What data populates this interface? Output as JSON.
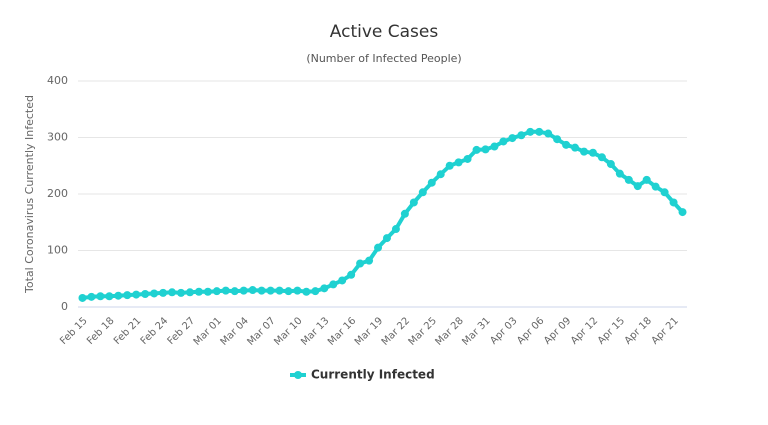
{
  "chart_data": {
    "type": "line",
    "title": "Active Cases",
    "subtitle": "(Number of Infected People)",
    "y_label": "Total Coronavirus Currently Infected",
    "categories": [
      "Feb 15",
      null,
      null,
      "Feb 18",
      null,
      null,
      "Feb 21",
      null,
      null,
      "Feb 24",
      null,
      null,
      "Feb 27",
      null,
      null,
      "Mar 01",
      null,
      null,
      "Mar 04",
      null,
      null,
      "Mar 07",
      null,
      null,
      "Mar 10",
      null,
      null,
      "Mar 13",
      null,
      null,
      "Mar 16",
      null,
      null,
      "Mar 19",
      null,
      null,
      "Mar 22",
      null,
      null,
      "Mar 25",
      null,
      null,
      "Mar 28",
      null,
      null,
      "Mar 31",
      null,
      null,
      "Apr 03",
      null,
      null,
      "Apr 06",
      null,
      null,
      "Apr 09",
      null,
      null,
      "Apr 12",
      null,
      null,
      "Apr 15",
      null,
      null,
      "Apr 18",
      null,
      null,
      "Apr 21",
      null
    ],
    "series": [
      {
        "name": "Currently Infected",
        "color": "#1fd1d1",
        "values": [
          16,
          18,
          19,
          19,
          20,
          21,
          22,
          23,
          24,
          25,
          26,
          25,
          26,
          27,
          27,
          28,
          29,
          28,
          29,
          30,
          29,
          29,
          29,
          28,
          29,
          27,
          28,
          33,
          40,
          47,
          57,
          77,
          82,
          105,
          122,
          138,
          165,
          185,
          203,
          220,
          235,
          250,
          256,
          262,
          278,
          279,
          284,
          293,
          299,
          304,
          310,
          310,
          307,
          297,
          287,
          282,
          275,
          273,
          265,
          253,
          236,
          225,
          214,
          225,
          213,
          203,
          185,
          168
        ]
      }
    ],
    "ylim": [
      0,
      400
    ],
    "yticks": [
      0,
      100,
      200,
      300,
      400
    ],
    "grid": true,
    "legend": "bottom"
  }
}
